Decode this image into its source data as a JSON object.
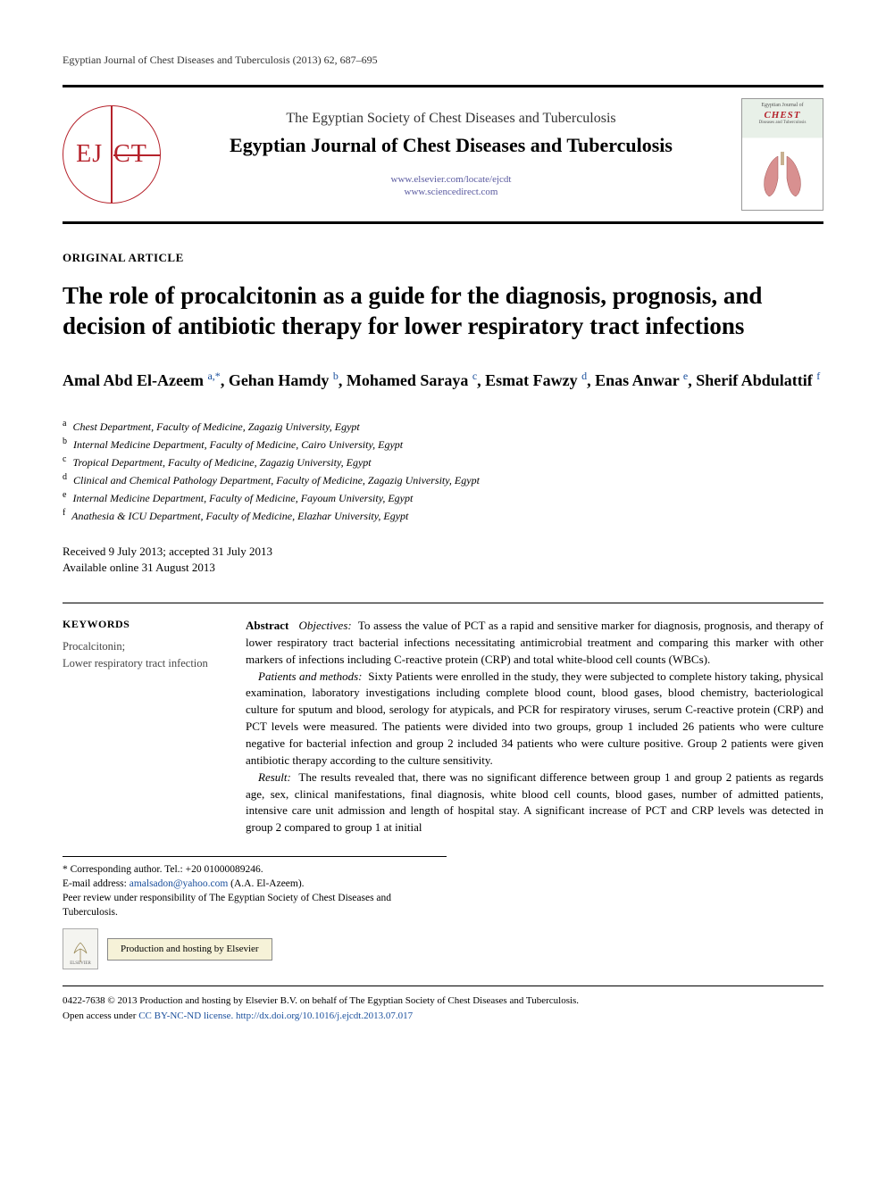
{
  "running_head": "Egyptian Journal of Chest Diseases and Tuberculosis (2013) 62, 687–695",
  "header": {
    "logo_text_left": "EJ",
    "logo_text_right": "CT",
    "society": "The Egyptian Society of Chest Diseases and Tuberculosis",
    "journal": "Egyptian Journal of Chest Diseases and Tuberculosis",
    "url1": "www.elsevier.com/locate/ejcdt",
    "url2": "www.sciencedirect.com",
    "cover_small": "Egyptian Journal of",
    "cover_title": "CHEST",
    "cover_sub": "Diseases and Tuberculosis"
  },
  "section_label": "ORIGINAL ARTICLE",
  "title": "The role of procalcitonin as a guide for the diagnosis, prognosis, and decision of antibiotic therapy for lower respiratory tract infections",
  "authors_html": "Amal Abd El-Azeem <sup>a,*</sup>, Gehan Hamdy <sup>b</sup>, Mohamed Saraya <sup>c</sup>, Esmat Fawzy <sup>d</sup>, Enas Anwar <sup>e</sup>, Sherif Abdulattif <sup>f</sup>",
  "affiliations": [
    {
      "sup": "a",
      "text": "Chest Department, Faculty of Medicine, Zagazig University, Egypt"
    },
    {
      "sup": "b",
      "text": "Internal Medicine Department, Faculty of Medicine, Cairo University, Egypt"
    },
    {
      "sup": "c",
      "text": "Tropical Department, Faculty of Medicine, Zagazig University, Egypt"
    },
    {
      "sup": "d",
      "text": "Clinical and Chemical Pathology Department, Faculty of Medicine, Zagazig University, Egypt"
    },
    {
      "sup": "e",
      "text": "Internal Medicine Department, Faculty of Medicine, Fayoum University, Egypt"
    },
    {
      "sup": "f",
      "text": "Anathesia & ICU Department, Faculty of Medicine, Elazhar University, Egypt"
    }
  ],
  "dates": {
    "line1": "Received 9 July 2013; accepted 31 July 2013",
    "line2": "Available online 31 August 2013"
  },
  "keywords": {
    "head": "KEYWORDS",
    "items": "Procalcitonin;\nLower respiratory tract infection"
  },
  "abstract": {
    "label": "Abstract",
    "objectives_head": "Objectives:",
    "objectives": "To assess the value of PCT as a rapid and sensitive marker for diagnosis, prognosis, and therapy of lower respiratory tract bacterial infections necessitating antimicrobial treatment and comparing this marker with other markers of infections including C-reactive protein (CRP) and total white-blood cell counts (WBCs).",
    "methods_head": "Patients and methods:",
    "methods": "Sixty Patients were enrolled in the study, they were subjected to complete history taking, physical examination, laboratory investigations including complete blood count, blood gases, blood chemistry, bacteriological culture for sputum and blood, serology for atypicals, and PCR for respiratory viruses, serum C-reactive protein (CRP) and PCT levels were measured. The patients were divided into two groups, group 1 included 26 patients who were culture negative for bacterial infection and group 2 included 34 patients who were culture positive. Group 2 patients were given antibiotic therapy according to the culture sensitivity.",
    "result_head": "Result:",
    "result": "The results revealed that, there was no significant difference between group 1 and group 2 patients as regards age, sex, clinical manifestations, final diagnosis, white blood cell counts, blood gases, number of admitted patients, intensive care unit admission and length of hospital stay. A significant increase of PCT and CRP levels was detected in group 2 compared to group 1 at initial"
  },
  "footnotes": {
    "corr": "* Corresponding author. Tel.: +20 01000089246.",
    "email_label": "E-mail address: ",
    "email": "amalsadon@yahoo.com",
    "email_tail": " (A.A. El-Azeem).",
    "peer": "Peer review under responsibility of The Egyptian Society of Chest Diseases and Tuberculosis.",
    "els_logo": "ELSEVIER",
    "prod_host": "Production and hosting by Elsevier"
  },
  "copyright": {
    "line": "0422-7638 © 2013 Production and hosting by Elsevier B.V. on behalf of The Egyptian Society of Chest Diseases and Tuberculosis.",
    "open_pre": "Open access under ",
    "license": "CC BY-NC-ND license.",
    "doi_pre": " ",
    "doi": "http://dx.doi.org/10.1016/j.ejcdt.2013.07.017"
  },
  "colors": {
    "brand_red": "#b5222b",
    "link_blue": "#1a4f9c",
    "text": "#000000",
    "bg": "#ffffff"
  }
}
